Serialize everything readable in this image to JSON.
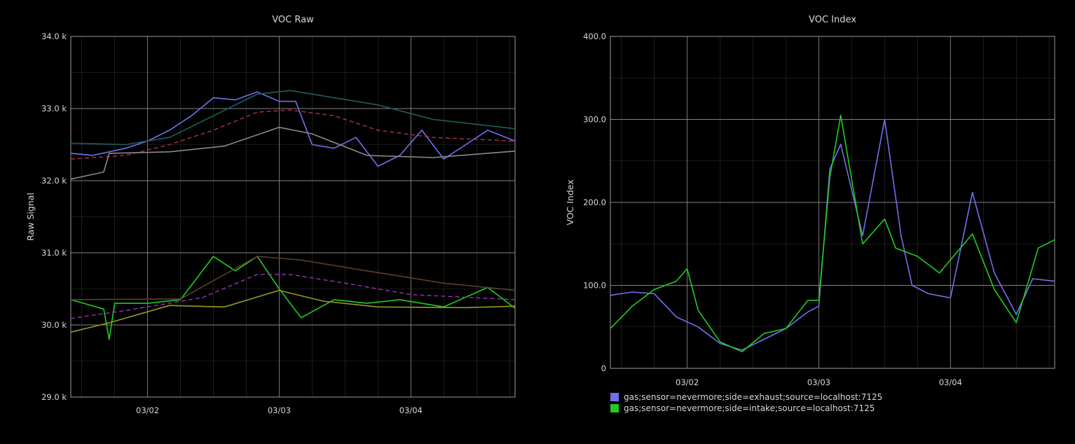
{
  "colors": {
    "background": "#000000",
    "grid": "#5a5a5a",
    "frame": "#9a9a9a",
    "text": "#d8d8d8"
  },
  "chart_data": [
    {
      "type": "line",
      "title": "VOC Raw",
      "xlabel": "",
      "ylabel": "Raw Signal",
      "grid": true,
      "x_range": [
        "03/01 10:00",
        "03/04 19:00"
      ],
      "ylim": [
        29000,
        34000
      ],
      "y_ticks": [
        "29.0 k",
        "30.0 k",
        "31.0 k",
        "32.0 k",
        "33.0 k",
        "34.0 k"
      ],
      "x_ticks": [
        "03/02",
        "03/03",
        "03/04"
      ],
      "series": [
        {
          "color": "#7070ee",
          "style": "solid",
          "x": [
            "03/01 10:00",
            "03/01 14:00",
            "03/01 20:00",
            "03/02 00:00",
            "03/02 04:00",
            "03/02 08:00",
            "03/02 12:00",
            "03/02 16:00",
            "03/02 20:00",
            "03/03 00:00",
            "03/03 03:00",
            "03/03 06:00",
            "03/03 10:00",
            "03/03 14:00",
            "03/03 18:00",
            "03/03 22:00",
            "03/04 02:00",
            "03/04 06:00",
            "03/04 10:00",
            "03/04 14:00",
            "03/04 19:00"
          ],
          "y": [
            32380,
            32350,
            32450,
            32550,
            32700,
            32900,
            33150,
            33120,
            33230,
            33100,
            33100,
            32500,
            32450,
            32600,
            32200,
            32350,
            32700,
            32300,
            32500,
            32700,
            32550
          ]
        },
        {
          "color": "#1f5f5f",
          "style": "solid",
          "x": [
            "03/01 10:00",
            "03/01 20:00",
            "03/02 04:00",
            "03/02 12:00",
            "03/02 20:00",
            "03/03 02:00",
            "03/03 10:00",
            "03/03 18:00",
            "03/04 04:00",
            "03/04 19:00"
          ],
          "y": [
            32520,
            32500,
            32600,
            32900,
            33200,
            33250,
            33150,
            33050,
            32850,
            32720
          ]
        },
        {
          "color": "#b03050",
          "style": "dashed",
          "x": [
            "03/01 10:00",
            "03/01 20:00",
            "03/02 04:00",
            "03/02 12:00",
            "03/02 20:00",
            "03/03 02:00",
            "03/03 10:00",
            "03/03 18:00",
            "03/04 04:00",
            "03/04 19:00"
          ],
          "y": [
            32300,
            32350,
            32500,
            32700,
            32950,
            32980,
            32900,
            32700,
            32600,
            32550
          ]
        },
        {
          "color": "#8a8a8a",
          "style": "solid",
          "x": [
            "03/01 10:00",
            "03/01 16:00",
            "03/01 17:00",
            "03/02 04:00",
            "03/02 14:00",
            "03/03 00:00",
            "03/03 06:00",
            "03/03 16:00",
            "03/04 04:00",
            "03/04 19:00"
          ],
          "y": [
            32020,
            32120,
            32380,
            32400,
            32480,
            32740,
            32650,
            32350,
            32320,
            32410
          ]
        },
        {
          "color": "#20cc20",
          "style": "solid",
          "x": [
            "03/01 10:00",
            "03/01 16:00",
            "03/01 17:00",
            "03/01 18:00",
            "03/02 00:00",
            "03/02 06:00",
            "03/02 12:00",
            "03/02 16:00",
            "03/02 20:00",
            "03/03 00:00",
            "03/03 04:00",
            "03/03 10:00",
            "03/03 16:00",
            "03/03 22:00",
            "03/04 06:00",
            "03/04 14:00",
            "03/04 19:00"
          ],
          "y": [
            30350,
            30220,
            29800,
            30300,
            30300,
            30350,
            30950,
            30750,
            30950,
            30500,
            30100,
            30350,
            30300,
            30350,
            30250,
            30520,
            30230
          ]
        },
        {
          "color": "#5a3f2a",
          "style": "solid",
          "x": [
            "03/01 10:00",
            "03/02 06:00",
            "03/02 20:00",
            "03/03 04:00",
            "03/03 16:00",
            "03/04 06:00",
            "03/04 19:00"
          ],
          "y": [
            30350,
            30360,
            30950,
            30900,
            30750,
            30580,
            30480
          ]
        },
        {
          "color": "#9933bb",
          "style": "dashed",
          "x": [
            "03/01 10:00",
            "03/01 20:00",
            "03/02 10:00",
            "03/02 20:00",
            "03/03 02:00",
            "03/03 12:00",
            "03/04 00:00",
            "03/04 19:00"
          ],
          "y": [
            30090,
            30200,
            30380,
            30700,
            30700,
            30580,
            30420,
            30350
          ]
        },
        {
          "color": "#999920",
          "style": "solid",
          "x": [
            "03/01 10:00",
            "03/01 17:00",
            "03/02 04:00",
            "03/02 14:00",
            "03/03 00:00",
            "03/03 08:00",
            "03/03 18:00",
            "03/04 10:00",
            "03/04 19:00"
          ],
          "y": [
            29900,
            30030,
            30270,
            30250,
            30480,
            30330,
            30250,
            30240,
            30260
          ]
        }
      ]
    },
    {
      "type": "line",
      "title": "VOC Index",
      "xlabel": "",
      "ylabel": "VOC Index",
      "grid": true,
      "legend_position": "bottom",
      "x_range": [
        "03/01 10:00",
        "03/04 19:00"
      ],
      "ylim": [
        0,
        400
      ],
      "y_ticks": [
        "0",
        "100.0",
        "200.0",
        "300.0",
        "400.0"
      ],
      "x_ticks": [
        "03/02",
        "03/03",
        "03/04"
      ],
      "series": [
        {
          "name": "gas;sensor=nevermore;side=exhaust;source=localhost:7125",
          "color": "#7070ee",
          "x": [
            "03/01 10:00",
            "03/01 14:00",
            "03/01 18:00",
            "03/01 22:00",
            "03/02 02:00",
            "03/02 06:00",
            "03/02 10:00",
            "03/02 14:00",
            "03/02 18:00",
            "03/02 22:00",
            "03/03 00:00",
            "03/03 02:00",
            "03/03 04:00",
            "03/03 08:00",
            "03/03 12:00",
            "03/03 15:00",
            "03/03 17:00",
            "03/03 20:00",
            "03/04 00:00",
            "03/04 04:00",
            "03/04 08:00",
            "03/04 12:00",
            "03/04 15:00",
            "03/04 19:00"
          ],
          "y": [
            88,
            92,
            90,
            62,
            50,
            30,
            22,
            35,
            48,
            68,
            75,
            240,
            270,
            160,
            300,
            160,
            100,
            90,
            85,
            212,
            115,
            65,
            108,
            105
          ]
        },
        {
          "name": "gas;sensor=nevermore;side=intake;source=localhost:7125",
          "color": "#20cc20",
          "x": [
            "03/01 10:00",
            "03/01 14:00",
            "03/01 18:00",
            "03/01 22:00",
            "03/02 00:00",
            "03/02 02:00",
            "03/02 06:00",
            "03/02 10:00",
            "03/02 14:00",
            "03/02 18:00",
            "03/02 22:00",
            "03/03 00:00",
            "03/03 02:00",
            "03/03 04:00",
            "03/03 08:00",
            "03/03 12:00",
            "03/03 14:00",
            "03/03 18:00",
            "03/03 22:00",
            "03/04 04:00",
            "03/04 08:00",
            "03/04 12:00",
            "03/04 16:00",
            "03/04 19:00"
          ],
          "y": [
            48,
            75,
            95,
            105,
            120,
            70,
            32,
            20,
            42,
            48,
            82,
            82,
            230,
            305,
            150,
            180,
            145,
            135,
            115,
            162,
            95,
            55,
            145,
            155
          ]
        }
      ]
    }
  ]
}
